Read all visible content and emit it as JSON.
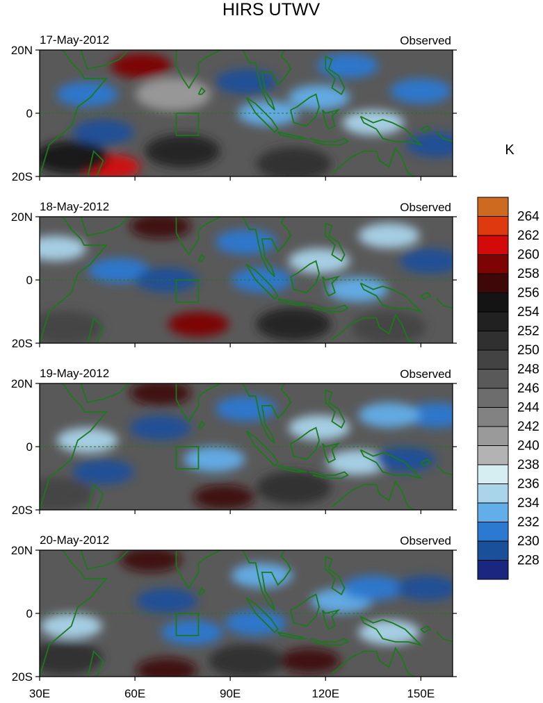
{
  "chart_data": {
    "type": "heatmap",
    "title": "HIRS UTWV",
    "units": "K",
    "panel_right_label": "Observed",
    "x_ticks": [
      "30E",
      "60E",
      "90E",
      "120E",
      "150E"
    ],
    "x_tick_values": [
      30,
      60,
      90,
      120,
      150
    ],
    "y_ticks": [
      "20N",
      "0",
      "20S"
    ],
    "y_tick_values": [
      20,
      0,
      -20
    ],
    "xlim": [
      30,
      160
    ],
    "ylim": [
      -20,
      20
    ],
    "grid": false,
    "legend_position": "right",
    "colorbar": {
      "labels": [
        "264",
        "262",
        "260",
        "258",
        "256",
        "254",
        "252",
        "250",
        "248",
        "246",
        "244",
        "242",
        "240",
        "238",
        "236",
        "234",
        "232",
        "230",
        "228"
      ],
      "colors": [
        "#cd6a20",
        "#de3a10",
        "#d40a0a",
        "#7e0404",
        "#3e0808",
        "#141414",
        "#212121",
        "#303030",
        "#434343",
        "#595959",
        "#6d6d6d",
        "#828282",
        "#9a9a9a",
        "#b3b3b3",
        "#d6eef2",
        "#a9d4ea",
        "#62aee9",
        "#2b79d1",
        "#1a4f99",
        "#1a2781"
      ]
    },
    "box": {
      "lon": [
        73,
        80
      ],
      "lat": [
        -7,
        0
      ]
    },
    "panels": [
      {
        "date": "17-May-2012",
        "blobs": [
          {
            "lon": 45,
            "lat": 6,
            "value": 233
          },
          {
            "lon": 50,
            "lat": -6,
            "value": 231
          },
          {
            "lon": 62,
            "lat": 15,
            "value": 260
          },
          {
            "lon": 52,
            "lat": -17,
            "value": 262
          },
          {
            "lon": 95,
            "lat": 10,
            "value": 231
          },
          {
            "lon": 102,
            "lat": 0,
            "value": 234
          },
          {
            "lon": 118,
            "lat": 5,
            "value": 235
          },
          {
            "lon": 127,
            "lat": 15,
            "value": 232
          },
          {
            "lon": 135,
            "lat": -3,
            "value": 236
          },
          {
            "lon": 150,
            "lat": 7,
            "value": 233
          },
          {
            "lon": 155,
            "lat": -10,
            "value": 230
          },
          {
            "lon": 75,
            "lat": -12,
            "value": 254
          },
          {
            "lon": 40,
            "lat": -14,
            "value": 256
          },
          {
            "lon": 110,
            "lat": -16,
            "value": 252
          },
          {
            "lon": 72,
            "lat": 6,
            "value": 242
          }
        ]
      },
      {
        "date": "18-May-2012",
        "blobs": [
          {
            "lon": 35,
            "lat": 10,
            "value": 237
          },
          {
            "lon": 55,
            "lat": 3,
            "value": 233
          },
          {
            "lon": 70,
            "lat": 0,
            "value": 231
          },
          {
            "lon": 68,
            "lat": 17,
            "value": 258
          },
          {
            "lon": 80,
            "lat": -14,
            "value": 260
          },
          {
            "lon": 95,
            "lat": 12,
            "value": 233
          },
          {
            "lon": 100,
            "lat": 0,
            "value": 232
          },
          {
            "lon": 118,
            "lat": 6,
            "value": 236
          },
          {
            "lon": 130,
            "lat": -3,
            "value": 235
          },
          {
            "lon": 153,
            "lat": 6,
            "value": 231
          },
          {
            "lon": 140,
            "lat": 14,
            "value": 236
          },
          {
            "lon": 110,
            "lat": -14,
            "value": 254
          },
          {
            "lon": 38,
            "lat": -15,
            "value": 250
          },
          {
            "lon": 140,
            "lat": -15,
            "value": 250
          }
        ]
      },
      {
        "date": "19-May-2012",
        "blobs": [
          {
            "lon": 45,
            "lat": 2,
            "value": 237
          },
          {
            "lon": 68,
            "lat": 6,
            "value": 231
          },
          {
            "lon": 50,
            "lat": -8,
            "value": 231
          },
          {
            "lon": 68,
            "lat": 17,
            "value": 258
          },
          {
            "lon": 88,
            "lat": -16,
            "value": 258
          },
          {
            "lon": 95,
            "lat": 12,
            "value": 233
          },
          {
            "lon": 85,
            "lat": -4,
            "value": 234
          },
          {
            "lon": 118,
            "lat": 6,
            "value": 237
          },
          {
            "lon": 130,
            "lat": -5,
            "value": 236
          },
          {
            "lon": 145,
            "lat": -4,
            "value": 231
          },
          {
            "lon": 155,
            "lat": 10,
            "value": 233
          },
          {
            "lon": 140,
            "lat": 10,
            "value": 234
          },
          {
            "lon": 110,
            "lat": -13,
            "value": 252
          },
          {
            "lon": 35,
            "lat": -15,
            "value": 250
          }
        ]
      },
      {
        "date": "20-May-2012",
        "blobs": [
          {
            "lon": 40,
            "lat": -4,
            "value": 237
          },
          {
            "lon": 70,
            "lat": 4,
            "value": 231
          },
          {
            "lon": 78,
            "lat": -6,
            "value": 232
          },
          {
            "lon": 65,
            "lat": 17,
            "value": 258
          },
          {
            "lon": 115,
            "lat": -15,
            "value": 258
          },
          {
            "lon": 70,
            "lat": -18,
            "value": 258
          },
          {
            "lon": 100,
            "lat": 12,
            "value": 235
          },
          {
            "lon": 98,
            "lat": -3,
            "value": 233
          },
          {
            "lon": 125,
            "lat": 4,
            "value": 234
          },
          {
            "lon": 135,
            "lat": 8,
            "value": 232
          },
          {
            "lon": 152,
            "lat": 8,
            "value": 231
          },
          {
            "lon": 140,
            "lat": -6,
            "value": 236
          },
          {
            "lon": 38,
            "lat": -14,
            "value": 252
          },
          {
            "lon": 95,
            "lat": -15,
            "value": 252
          }
        ]
      }
    ]
  }
}
